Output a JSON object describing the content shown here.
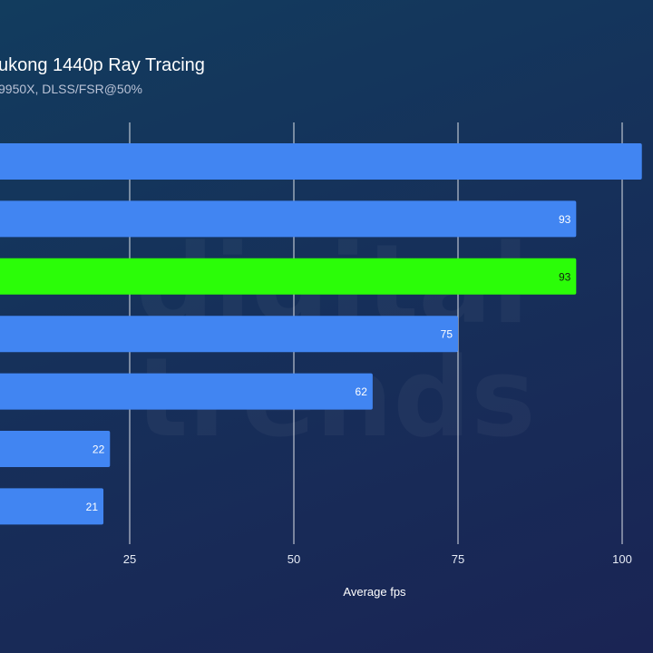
{
  "chart_data": {
    "type": "bar",
    "orientation": "horizontal",
    "title": "ukong 1440p Ray Tracing",
    "subtitle": "9950X, DLSS/FSR@50%",
    "xlabel": "Average fps",
    "xlim": [
      0,
      100
    ],
    "xticks": [
      25,
      50,
      75,
      100
    ],
    "grid": true,
    "values": [
      103,
      93,
      93,
      75,
      62,
      22,
      21
    ],
    "value_labels": [
      "",
      "93",
      "93",
      "75",
      "62",
      "22",
      "21"
    ],
    "highlight_index": 2,
    "colors": {
      "bar": "#4185f2",
      "highlight": "#2bfd08",
      "grid": "#ffffff",
      "bar_label": "#ffffff",
      "highlight_label": "#102010"
    }
  },
  "watermark": {
    "logo_text_1": "digital",
    "logo_text_2": "trends"
  }
}
